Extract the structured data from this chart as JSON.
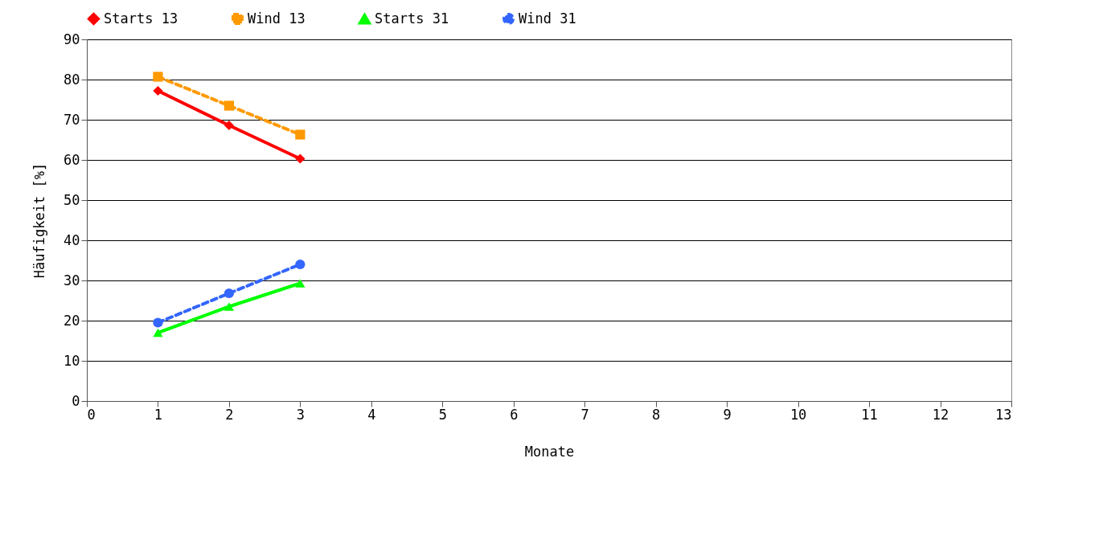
{
  "chart_data": {
    "type": "line",
    "xlabel": "Monate",
    "ylabel": "Häufigkeit [%]",
    "x": [
      1,
      2,
      3
    ],
    "series": [
      {
        "name": "Starts 13",
        "color": "#ff0000",
        "marker": "diamond",
        "line_style": "solid",
        "values": [
          77.2,
          68.6,
          60.3
        ]
      },
      {
        "name": "Wind 13",
        "color": "#ff9900",
        "marker": "square",
        "line_style": "dashed",
        "values": [
          80.7,
          73.5,
          66.3
        ]
      },
      {
        "name": "Starts 31",
        "color": "#00ff00",
        "marker": "triangle",
        "line_style": "solid",
        "values": [
          17.0,
          23.5,
          29.3
        ]
      },
      {
        "name": "Wind 31",
        "color": "#3366ff",
        "marker": "circle",
        "line_style": "dashed",
        "values": [
          19.5,
          26.8,
          34.0
        ]
      }
    ],
    "xlim": [
      0,
      13
    ],
    "xticks": [
      0,
      1,
      2,
      3,
      4,
      5,
      6,
      7,
      8,
      9,
      10,
      11,
      12,
      13
    ],
    "ylim": [
      0,
      90
    ],
    "yticks": [
      0,
      10,
      20,
      30,
      40,
      50,
      60,
      70,
      80,
      90
    ],
    "grid": "y",
    "legend": "top"
  }
}
